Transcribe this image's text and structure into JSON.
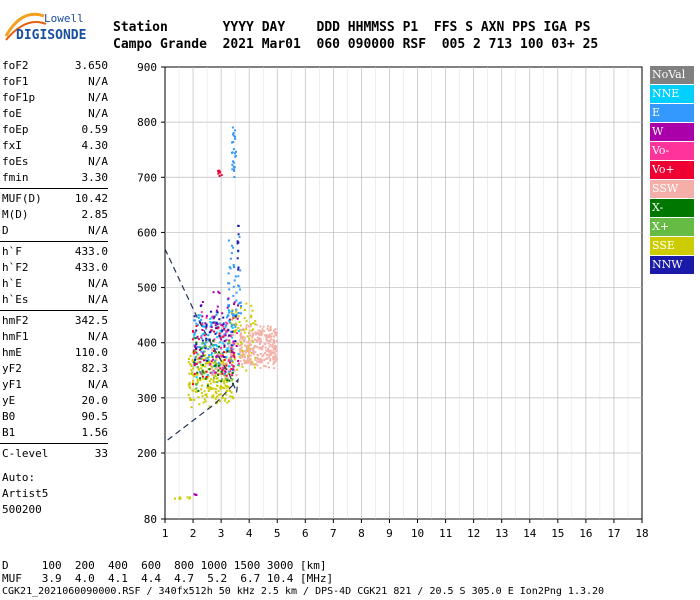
{
  "logo": {
    "top": "Lowell",
    "bottom": "DIGISONDE",
    "color": "#1a4fa0"
  },
  "header": {
    "row1": "Station       YYYY DAY    DDD HHMMSS P1  FFS S AXN PPS IGA PS",
    "row2": "Campo Grande  2021 Mar01  060 090000 RSF  005 2 713 100 03+ 25"
  },
  "params": [
    {
      "key": "foF2",
      "value": "3.650"
    },
    {
      "key": "foF1",
      "value": "N/A"
    },
    {
      "key": "foF1p",
      "value": "N/A"
    },
    {
      "key": "foE",
      "value": "N/A"
    },
    {
      "key": "foEp",
      "value": "0.59"
    },
    {
      "key": "fxI",
      "value": "4.30"
    },
    {
      "key": "foEs",
      "value": "N/A"
    },
    {
      "key": "fmin",
      "value": "3.30"
    },
    {
      "key": "MUF(D)",
      "value": "10.42"
    },
    {
      "key": "M(D)",
      "value": "2.85"
    },
    {
      "key": "D",
      "value": "N/A"
    },
    {
      "key": "h`F",
      "value": "433.0"
    },
    {
      "key": "h`F2",
      "value": "433.0"
    },
    {
      "key": "h`E",
      "value": "N/A"
    },
    {
      "key": "h`Es",
      "value": "N/A"
    },
    {
      "key": "hmF2",
      "value": "342.5"
    },
    {
      "key": "hmF1",
      "value": "N/A"
    },
    {
      "key": "hmE",
      "value": "110.0"
    },
    {
      "key": "yF2",
      "value": "82.3"
    },
    {
      "key": "yF1",
      "value": "N/A"
    },
    {
      "key": "yE",
      "value": "20.0"
    },
    {
      "key": "B0",
      "value": "90.5"
    },
    {
      "key": "B1",
      "value": "1.56"
    },
    {
      "key": "C-level",
      "value": "33"
    }
  ],
  "auto": [
    "Auto:",
    "Artist5",
    "500200"
  ],
  "legend": [
    {
      "label": "NoVal",
      "color": "#808080"
    },
    {
      "label": "NNE",
      "color": "#00d0ff"
    },
    {
      "label": "E",
      "color": "#3399ff"
    },
    {
      "label": "W",
      "color": "#aa00aa"
    },
    {
      "label": "Vo-",
      "color": "#ff3399"
    },
    {
      "label": "Vo+",
      "color": "#ee0033"
    },
    {
      "label": "SSW",
      "color": "#f4b0a8"
    },
    {
      "label": "X-",
      "color": "#007700"
    },
    {
      "label": "X+",
      "color": "#66bb44"
    },
    {
      "label": "SSE",
      "color": "#cccc00"
    },
    {
      "label": "NNW",
      "color": "#1a1aa8"
    }
  ],
  "bottom": {
    "row1": "D     100  200  400  600  800 1000 1500 3000 [km]",
    "row2": "MUF   3.9  4.0  4.1  4.4  4.7  5.2  6.7 10.4 [MHz]",
    "row3": "CGK21_2021060090000.RSF / 340fx512h 50 kHz 2.5 km / DPS-4D CGK21 821 / 20.5 S 305.0 E Ion2Png 1.3.20"
  },
  "chart_data": {
    "type": "scatter",
    "title": "",
    "xlabel": "",
    "ylabel": "",
    "xlim": [
      1,
      18
    ],
    "ylim": [
      80,
      900
    ],
    "x_ticks": [
      1,
      2,
      3,
      4,
      5,
      6,
      7,
      8,
      9,
      10,
      11,
      12,
      13,
      14,
      15,
      16,
      17,
      18
    ],
    "y_ticks": [
      80,
      200,
      300,
      400,
      500,
      600,
      700,
      800,
      900
    ],
    "grid": true,
    "legend_placement": "right",
    "profile_line": {
      "style": "dashed",
      "points": [
        [
          1.0,
          570
        ],
        [
          1.6,
          505
        ],
        [
          2.2,
          440
        ],
        [
          2.8,
          385
        ],
        [
          3.3,
          342
        ],
        [
          3.55,
          310
        ],
        [
          3.6,
          333
        ],
        [
          2.8,
          290
        ],
        [
          1.0,
          220
        ]
      ]
    },
    "echo_clusters": [
      {
        "series": "SSE",
        "x": [
          1.8,
          3.4
        ],
        "y": [
          280,
          390
        ],
        "count": 230,
        "seed": 11
      },
      {
        "series": "SSE",
        "x": [
          3.3,
          4.2
        ],
        "y": [
          340,
          480
        ],
        "count": 90,
        "seed": 12
      },
      {
        "series": "SSW",
        "x": [
          3.6,
          5.0
        ],
        "y": [
          350,
          440
        ],
        "count": 260,
        "seed": 21
      },
      {
        "series": "SSW",
        "x": [
          2.6,
          3.6
        ],
        "y": [
          330,
          420
        ],
        "count": 60,
        "seed": 22
      },
      {
        "series": "E",
        "x": [
          2.0,
          3.4
        ],
        "y": [
          340,
          470
        ],
        "count": 90,
        "seed": 31
      },
      {
        "series": "E",
        "x": [
          3.2,
          3.7
        ],
        "y": [
          420,
          600
        ],
        "count": 50,
        "seed": 32
      },
      {
        "series": "NNE",
        "x": [
          1.9,
          3.6
        ],
        "y": [
          330,
          470
        ],
        "count": 60,
        "seed": 41
      },
      {
        "series": "Vo+",
        "x": [
          1.9,
          3.5
        ],
        "y": [
          320,
          440
        ],
        "count": 55,
        "seed": 51
      },
      {
        "series": "Vo-",
        "x": [
          2.2,
          3.6
        ],
        "y": [
          330,
          460
        ],
        "count": 45,
        "seed": 52
      },
      {
        "series": "W",
        "x": [
          2.0,
          3.6
        ],
        "y": [
          330,
          520
        ],
        "count": 45,
        "seed": 61
      },
      {
        "series": "NNW",
        "x": [
          2.0,
          3.5
        ],
        "y": [
          350,
          470
        ],
        "count": 40,
        "seed": 62
      },
      {
        "series": "X-",
        "x": [
          2.0,
          3.4
        ],
        "y": [
          300,
          420
        ],
        "count": 30,
        "seed": 71
      },
      {
        "series": "X+",
        "x": [
          2.0,
          3.4
        ],
        "y": [
          300,
          420
        ],
        "count": 30,
        "seed": 72
      },
      {
        "series": "E",
        "x": [
          3.35,
          3.5
        ],
        "y": [
          700,
          800
        ],
        "count": 25,
        "seed": 81
      },
      {
        "series": "Vo+",
        "x": [
          2.85,
          3.0
        ],
        "y": [
          700,
          715
        ],
        "count": 8,
        "seed": 82
      },
      {
        "series": "SSE",
        "x": [
          1.3,
          1.9
        ],
        "y": [
          118,
          122
        ],
        "count": 8,
        "seed": 91
      },
      {
        "series": "W",
        "x": [
          2.0,
          2.1
        ],
        "y": [
          120,
          128
        ],
        "count": 3,
        "seed": 92
      },
      {
        "series": "NNW",
        "x": [
          3.55,
          3.6
        ],
        "y": [
          500,
          630
        ],
        "count": 10,
        "seed": 93
      }
    ]
  }
}
